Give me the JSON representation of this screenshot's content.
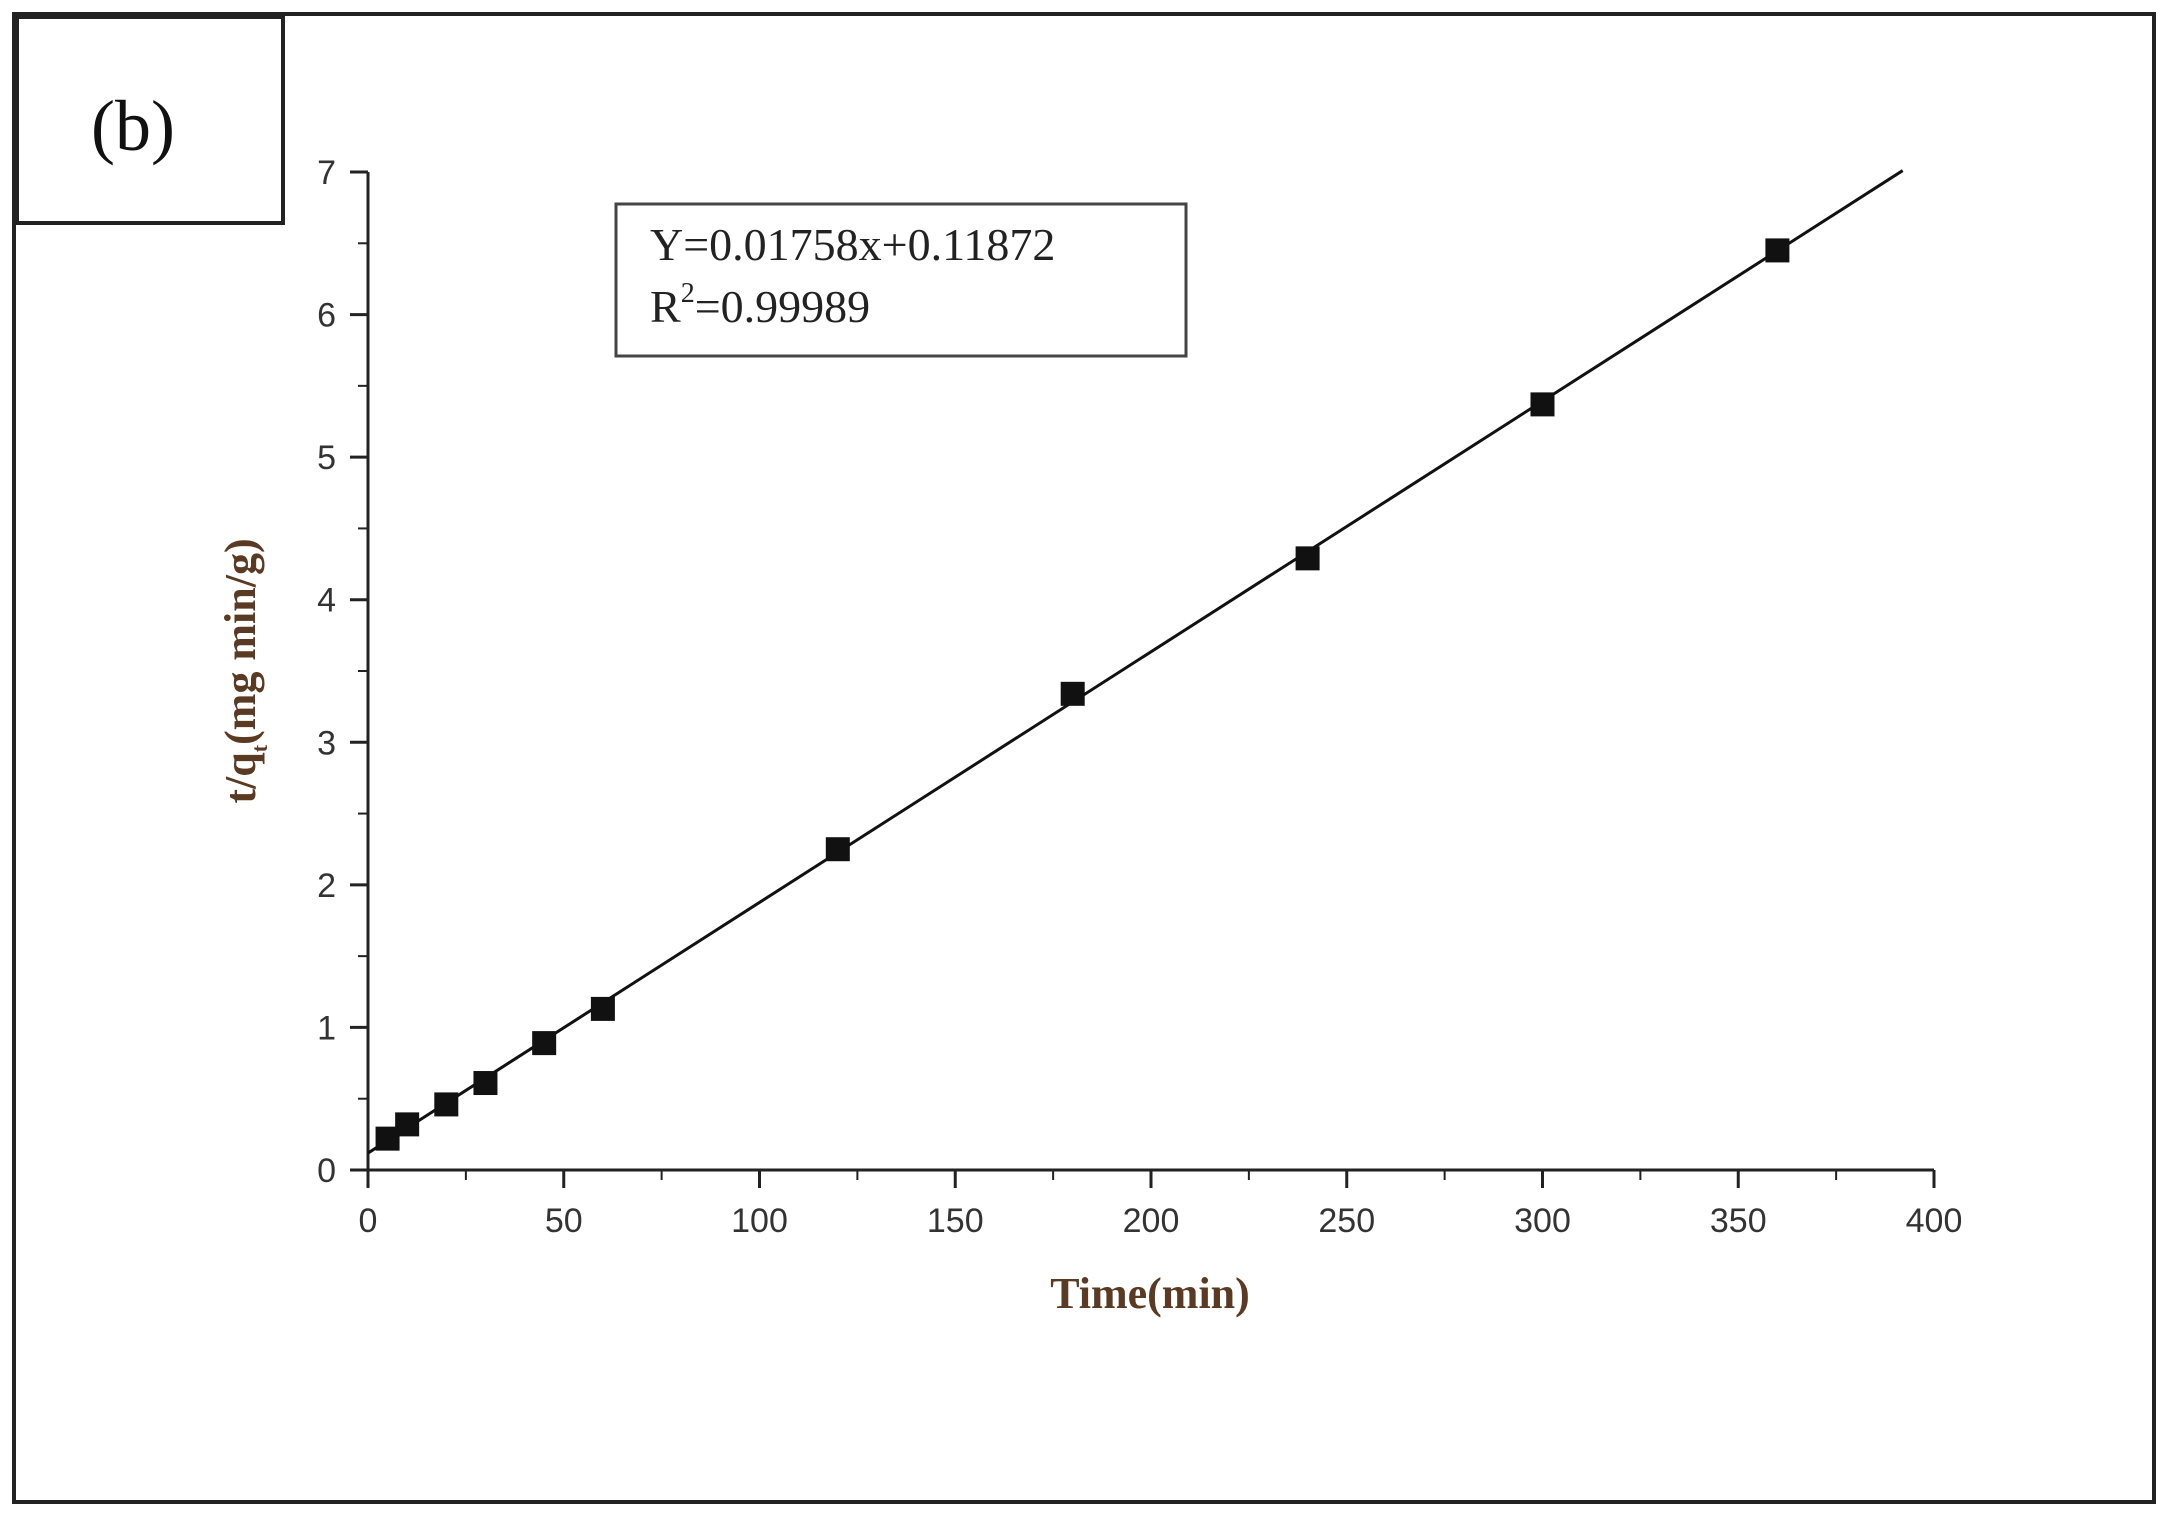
{
  "panel_label": "(b)",
  "equation_box": {
    "line1": "Y=0.01758x+0.11872",
    "line2_prefix": "R",
    "line2_sup": "2",
    "line2_rest": "=0.99989"
  },
  "colors": {
    "axis_title": "#5a3a22",
    "tick_label": "#333333",
    "marker": "#111111",
    "line": "#111111"
  },
  "chart_data": {
    "type": "scatter",
    "title": "",
    "xlabel": "Time(min)",
    "ylabel_main": "t/q",
    "ylabel_sub": "t",
    "ylabel_rest": "(mg min/g)",
    "xlim": [
      0,
      400
    ],
    "ylim": [
      0,
      7
    ],
    "x_ticks": [
      0,
      50,
      100,
      150,
      200,
      250,
      300,
      350,
      400
    ],
    "y_ticks": [
      0,
      1,
      2,
      3,
      4,
      5,
      6,
      7
    ],
    "grid": false,
    "legend": "none",
    "series": [
      {
        "values_x": [
          5,
          10,
          20,
          30,
          45,
          60,
          120,
          180,
          240,
          300,
          360
        ],
        "values_y": [
          0.22,
          0.32,
          0.46,
          0.61,
          0.89,
          1.13,
          2.25,
          3.34,
          4.29,
          5.37,
          6.45
        ],
        "marker": "square"
      }
    ],
    "fit_line": {
      "slope": 0.01758,
      "intercept": 0.11872,
      "x_range": [
        0,
        392
      ]
    }
  }
}
